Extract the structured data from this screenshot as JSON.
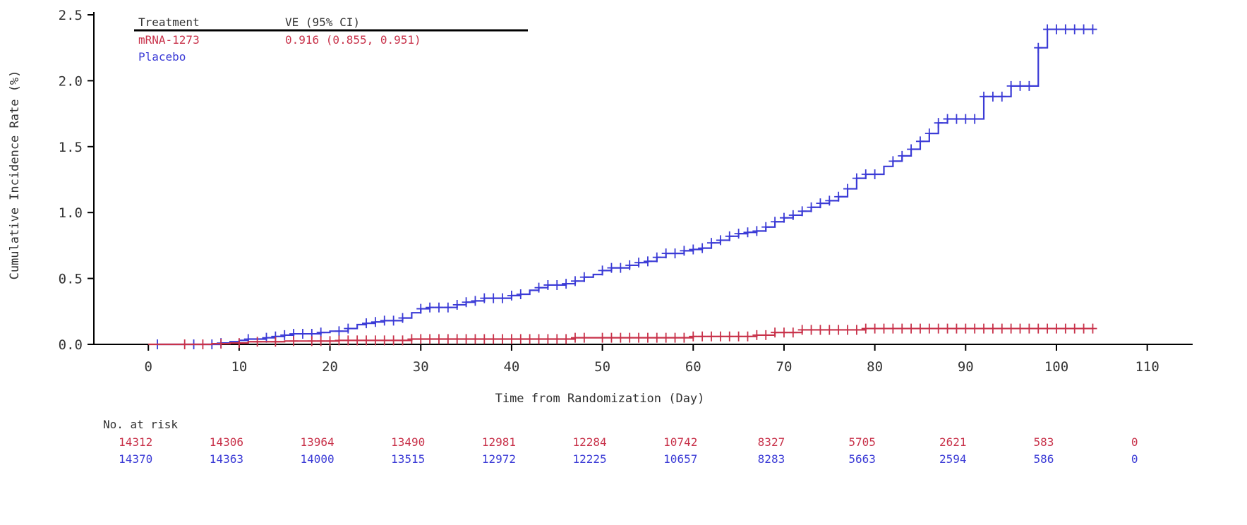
{
  "chart_data": {
    "type": "line",
    "subtype": "kaplan-meier cumulative incidence (step)",
    "xlabel": "Time from Randomization (Day)",
    "ylabel": "Cumulative Incidence Rate (%)",
    "xlim": [
      -6,
      115
    ],
    "ylim": [
      0,
      2.5
    ],
    "xticks": [
      0,
      10,
      20,
      30,
      40,
      50,
      60,
      70,
      80,
      90,
      100,
      110
    ],
    "yticks": [
      0.0,
      0.5,
      1.0,
      1.5,
      2.0,
      2.5
    ],
    "ytick_labels": [
      "0.0",
      "0.5",
      "1.0",
      "1.5",
      "2.0",
      "2.5"
    ],
    "grid": false,
    "legend": {
      "placement": "top-left",
      "header_treatment": "Treatment",
      "header_ve": "VE (95% CI)",
      "rows": [
        {
          "treatment": "mRNA-1273",
          "ve": "0.916 (0.855, 0.951)",
          "color": "#c8324a"
        },
        {
          "treatment": "Placebo",
          "ve": "",
          "color": "#3b3bd6"
        }
      ]
    },
    "series": [
      {
        "name": "Placebo",
        "color": "#3b3bd6",
        "points": [
          [
            1,
            0.0
          ],
          [
            8,
            0.01
          ],
          [
            9,
            0.02
          ],
          [
            10,
            0.03
          ],
          [
            11,
            0.04
          ],
          [
            13,
            0.05
          ],
          [
            14,
            0.06
          ],
          [
            15,
            0.07
          ],
          [
            16,
            0.08
          ],
          [
            19,
            0.09
          ],
          [
            20,
            0.1
          ],
          [
            22,
            0.12
          ],
          [
            23,
            0.15
          ],
          [
            24,
            0.16
          ],
          [
            25,
            0.17
          ],
          [
            26,
            0.18
          ],
          [
            28,
            0.2
          ],
          [
            29,
            0.24
          ],
          [
            30,
            0.27
          ],
          [
            31,
            0.28
          ],
          [
            34,
            0.3
          ],
          [
            35,
            0.32
          ],
          [
            36,
            0.33
          ],
          [
            37,
            0.35
          ],
          [
            40,
            0.37
          ],
          [
            41,
            0.38
          ],
          [
            42,
            0.41
          ],
          [
            43,
            0.43
          ],
          [
            44,
            0.45
          ],
          [
            46,
            0.46
          ],
          [
            47,
            0.48
          ],
          [
            48,
            0.51
          ],
          [
            49,
            0.53
          ],
          [
            50,
            0.56
          ],
          [
            51,
            0.58
          ],
          [
            53,
            0.6
          ],
          [
            54,
            0.62
          ],
          [
            55,
            0.63
          ],
          [
            56,
            0.66
          ],
          [
            57,
            0.69
          ],
          [
            59,
            0.71
          ],
          [
            60,
            0.72
          ],
          [
            61,
            0.73
          ],
          [
            62,
            0.77
          ],
          [
            63,
            0.79
          ],
          [
            64,
            0.82
          ],
          [
            65,
            0.84
          ],
          [
            66,
            0.85
          ],
          [
            67,
            0.86
          ],
          [
            68,
            0.89
          ],
          [
            69,
            0.93
          ],
          [
            70,
            0.96
          ],
          [
            71,
            0.98
          ],
          [
            72,
            1.01
          ],
          [
            73,
            1.04
          ],
          [
            74,
            1.07
          ],
          [
            75,
            1.09
          ],
          [
            76,
            1.12
          ],
          [
            77,
            1.18
          ],
          [
            78,
            1.26
          ],
          [
            79,
            1.29
          ],
          [
            81,
            1.35
          ],
          [
            82,
            1.39
          ],
          [
            83,
            1.43
          ],
          [
            84,
            1.48
          ],
          [
            85,
            1.54
          ],
          [
            86,
            1.6
          ],
          [
            87,
            1.68
          ],
          [
            88,
            1.71
          ],
          [
            92,
            1.88
          ],
          [
            95,
            1.96
          ],
          [
            97,
            1.96
          ],
          [
            98,
            2.25
          ],
          [
            99,
            2.39
          ],
          [
            104,
            2.39
          ]
        ],
        "censor_x": [
          1,
          5,
          7,
          8,
          11,
          13,
          14,
          15,
          16,
          17,
          18,
          19,
          21,
          22,
          24,
          25,
          26,
          27,
          28,
          30,
          31,
          32,
          33,
          34,
          35,
          36,
          37,
          38,
          39,
          40,
          41,
          43,
          44,
          45,
          46,
          47,
          48,
          50,
          51,
          52,
          53,
          54,
          55,
          56,
          57,
          58,
          59,
          60,
          61,
          62,
          63,
          64,
          65,
          66,
          67,
          68,
          69,
          70,
          71,
          72,
          73,
          74,
          75,
          76,
          77,
          78,
          79,
          80,
          82,
          83,
          84,
          85,
          86,
          87,
          88,
          89,
          90,
          91,
          92,
          93,
          94,
          95,
          96,
          97,
          98,
          99,
          100,
          101,
          102,
          103,
          104
        ]
      },
      {
        "name": "mRNA-1273",
        "color": "#c8324a",
        "points": [
          [
            0,
            0.0
          ],
          [
            7,
            0.005
          ],
          [
            9,
            0.01
          ],
          [
            11,
            0.02
          ],
          [
            15,
            0.025
          ],
          [
            21,
            0.03
          ],
          [
            29,
            0.04
          ],
          [
            47,
            0.05
          ],
          [
            60,
            0.06
          ],
          [
            67,
            0.07
          ],
          [
            69,
            0.09
          ],
          [
            72,
            0.11
          ],
          [
            79,
            0.12
          ],
          [
            104,
            0.12
          ]
        ],
        "censor_x": [
          4,
          6,
          8,
          10,
          12,
          14,
          16,
          18,
          19,
          20,
          21,
          22,
          23,
          24,
          25,
          26,
          27,
          28,
          29,
          30,
          31,
          32,
          33,
          34,
          35,
          36,
          37,
          38,
          39,
          40,
          41,
          42,
          43,
          44,
          45,
          46,
          47,
          48,
          50,
          51,
          52,
          53,
          54,
          55,
          56,
          57,
          58,
          59,
          60,
          61,
          62,
          63,
          64,
          65,
          66,
          67,
          68,
          69,
          70,
          71,
          72,
          73,
          74,
          75,
          76,
          77,
          78,
          79,
          80,
          81,
          82,
          83,
          84,
          85,
          86,
          87,
          88,
          89,
          90,
          91,
          92,
          93,
          94,
          95,
          96,
          97,
          98,
          99,
          100,
          101,
          102,
          103,
          104
        ]
      }
    ],
    "risk_table": {
      "title": "No. at risk",
      "x": [
        0,
        10,
        20,
        30,
        40,
        50,
        60,
        70,
        80,
        90,
        100,
        110
      ],
      "rows": [
        {
          "name": "mRNA-1273",
          "color": "#c8324a",
          "values": [
            "14312",
            "14306",
            "13964",
            "13490",
            "12981",
            "12284",
            "10742",
            "8327",
            "5705",
            "2621",
            "583",
            "0"
          ]
        },
        {
          "name": "Placebo",
          "color": "#3b3bd6",
          "values": [
            "14370",
            "14363",
            "14000",
            "13515",
            "12972",
            "12225",
            "10657",
            "8283",
            "5663",
            "2594",
            "586",
            "0"
          ]
        }
      ]
    }
  }
}
